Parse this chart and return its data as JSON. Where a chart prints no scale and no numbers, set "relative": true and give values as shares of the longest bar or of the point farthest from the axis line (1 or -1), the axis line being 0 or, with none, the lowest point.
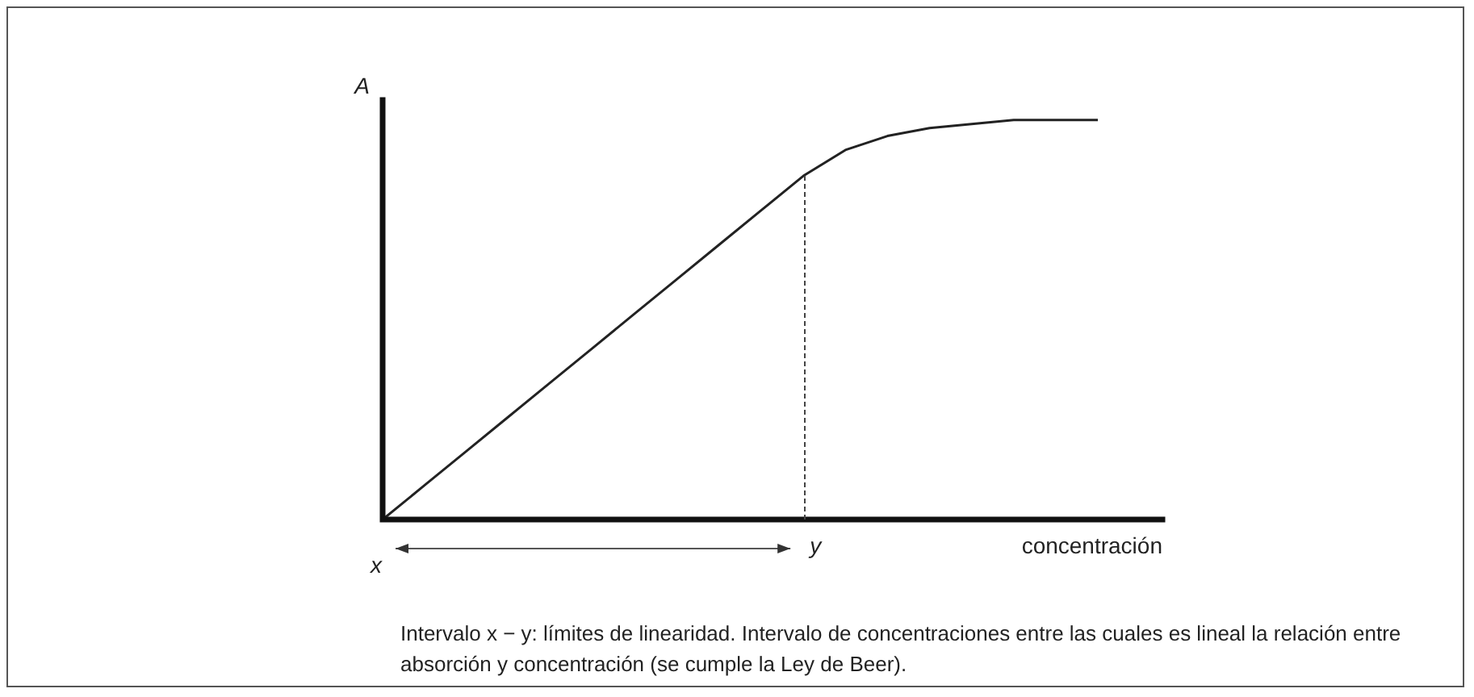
{
  "chart_data": {
    "type": "line",
    "relative": true,
    "xlabel": "concentración",
    "ylabel": "A",
    "categories": [
      null,
      null,
      null,
      null,
      null,
      null,
      null,
      null,
      null,
      null,
      null,
      null,
      null,
      null,
      null,
      null,
      null,
      null
    ],
    "legend": false,
    "marker": "none",
    "series": [
      {
        "color": "#222222",
        "values": [
          0,
          0.086,
          0.172,
          0.258,
          0.344,
          0.43,
          0.516,
          0.602,
          0.688,
          0.774,
          0.86,
          0.925,
          0.96,
          0.98,
          0.99,
          1,
          1,
          1
        ]
      }
    ],
    "annotations": [
      "x",
      "y",
      "Intervalo x − y: límites de linearidad. Intervalo de concentraciones entre las cuales es lineal la relación entre absorción y concentración (se cumple la Ley de Beer)."
    ]
  }
}
